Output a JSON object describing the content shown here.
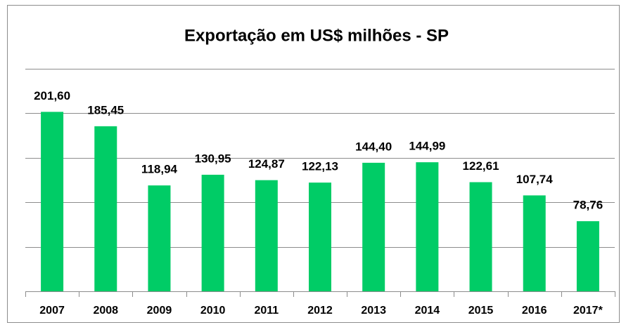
{
  "chart_data": {
    "type": "bar",
    "title": "Exportação em US$ milhões - SP",
    "categories": [
      "2007",
      "2008",
      "2009",
      "2010",
      "2011",
      "2012",
      "2013",
      "2014",
      "2015",
      "2016",
      "2017*"
    ],
    "values": [
      201.6,
      185.45,
      118.94,
      130.95,
      124.87,
      122.13,
      144.4,
      144.99,
      122.61,
      107.74,
      78.76
    ],
    "value_labels": [
      "201,60",
      "185,45",
      "118,94",
      "130,95",
      "124,87",
      "122,13",
      "144,40",
      "144,99",
      "122,61",
      "107,74",
      "78,76"
    ],
    "color": "#00cc66",
    "ylim": [
      0,
      250
    ],
    "yticks": [
      0,
      50,
      100,
      150,
      200,
      250
    ],
    "grid": true
  }
}
